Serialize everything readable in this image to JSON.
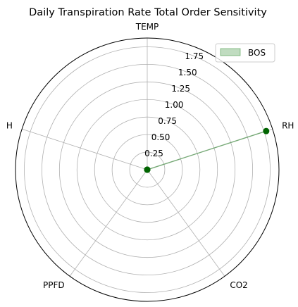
{
  "chart_data": {
    "type": "radar",
    "title": "Daily Transpiration Rate Total Order Sensitivity",
    "axes": [
      "TEMP",
      "RH",
      "CO2",
      "PPFD",
      "H"
    ],
    "rlim": [
      0,
      1.875
    ],
    "rticks": [
      0.25,
      0.5,
      0.75,
      1.0,
      1.25,
      1.5,
      1.75
    ],
    "rtick_labels": [
      "0.25",
      "0.50",
      "0.75",
      "1.00",
      "1.25",
      "1.50",
      "1.75"
    ],
    "grid": true,
    "legend_position": "top-right",
    "series": [
      {
        "name": "BOS",
        "values": [
          0.0,
          1.78,
          0.0,
          0.0,
          0.0
        ],
        "line_color": "#006400",
        "fill_color": "#2e8b2e",
        "fill_opacity": 0.3
      }
    ]
  }
}
